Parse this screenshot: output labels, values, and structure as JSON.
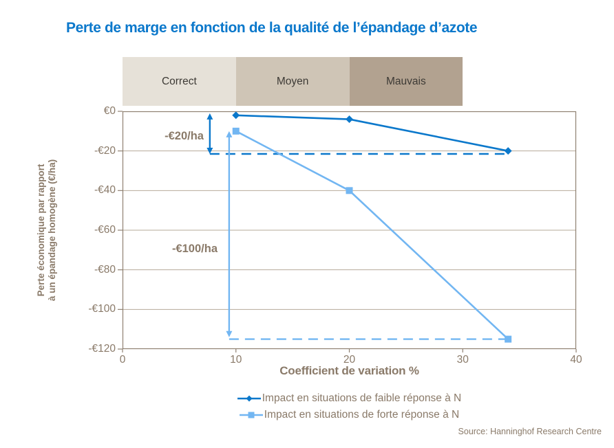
{
  "title": "Perte de marge en fonction de la qualité de l’épandage d’azote",
  "source": "Source: Hanninghof Research Centre",
  "colors": {
    "title_blue": "#0b78cb",
    "series_dark_blue": "#0b78cb",
    "series_light_blue": "#72b6f2",
    "text_brown": "#8a7a69",
    "grid": "#b6aa9a",
    "axis": "#8e8071",
    "band_text": "#3d3a35"
  },
  "chart_data": {
    "type": "line",
    "title": "Perte de marge en fonction de la qualité de l’épandage d’azote",
    "xlabel": "Coefficient de variation %",
    "ylabel": "Perte économique par rapport à un épandage homogène (€/ha)",
    "ylabel_line1": "Perte économique par rapport",
    "ylabel_line2": "à un épandage homogène (€/ha)",
    "xlim": [
      0,
      40
    ],
    "ylim": [
      -120,
      0
    ],
    "grid": "horizontal",
    "legend_position": "bottom",
    "x_ticks": [
      0,
      10,
      20,
      30,
      40
    ],
    "y_ticks": [
      "€0",
      "-€20",
      "-€40",
      "-€60",
      "-€80",
      "-€100",
      "-€120"
    ],
    "y_tick_values": [
      0,
      -20,
      -40,
      -60,
      -80,
      -100,
      -120
    ],
    "bands": [
      {
        "label": "Correct",
        "x1": 0,
        "x2": 10,
        "color": "#e6e1d8"
      },
      {
        "label": "Moyen",
        "x1": 10,
        "x2": 20,
        "color": "#cfc5b6"
      },
      {
        "label": "Mauvais",
        "x1": 20,
        "x2": 30,
        "color": "#b2a290"
      }
    ],
    "series": [
      {
        "name": "Impact en situations de faible réponse à N",
        "marker": "diamond",
        "color": "#0b78cb",
        "points": [
          [
            10,
            -2
          ],
          [
            20,
            -4
          ],
          [
            34,
            -20
          ]
        ]
      },
      {
        "name": "Impact en situations de forte réponse à N",
        "marker": "square",
        "color": "#72b6f2",
        "points": [
          [
            10,
            -10
          ],
          [
            20,
            -40
          ],
          [
            34,
            -115
          ]
        ]
      }
    ],
    "reference_lines": [
      {
        "y": -21.5,
        "x1": 7.7,
        "x2": 34.2,
        "color": "#0b78cb",
        "style": "dashed"
      },
      {
        "y": -115,
        "x1": 9.4,
        "x2": 34,
        "color": "#72b6f2",
        "style": "dashed"
      }
    ],
    "arrows": [
      {
        "x": 7.7,
        "y1": -1,
        "y2": -21.5,
        "color": "#0b78cb",
        "label": "-€20/ha"
      },
      {
        "x": 9.4,
        "y1": -10,
        "y2": -114,
        "color": "#72b6f2",
        "label": "-€100/ha"
      }
    ]
  }
}
